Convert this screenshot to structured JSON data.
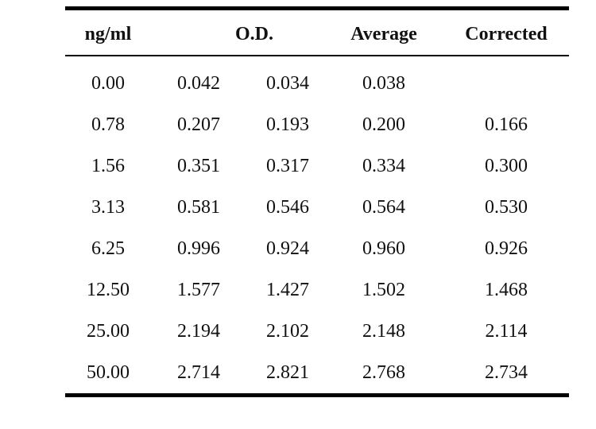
{
  "chart_data": {
    "type": "table",
    "headers": [
      "ng/ml",
      "O.D.",
      "Average",
      "Corrected"
    ],
    "rows": [
      [
        "0.00",
        "0.042",
        "0.034",
        "0.038",
        ""
      ],
      [
        "0.78",
        "0.207",
        "0.193",
        "0.200",
        "0.166"
      ],
      [
        "1.56",
        "0.351",
        "0.317",
        "0.334",
        "0.300"
      ],
      [
        "3.13",
        "0.581",
        "0.546",
        "0.564",
        "0.530"
      ],
      [
        "6.25",
        "0.996",
        "0.924",
        "0.960",
        "0.926"
      ],
      [
        "12.50",
        "1.577",
        "1.427",
        "1.502",
        "1.468"
      ],
      [
        "25.00",
        "2.194",
        "2.102",
        "2.148",
        "2.114"
      ],
      [
        "50.00",
        "2.714",
        "2.821",
        "2.768",
        "2.734"
      ]
    ]
  }
}
